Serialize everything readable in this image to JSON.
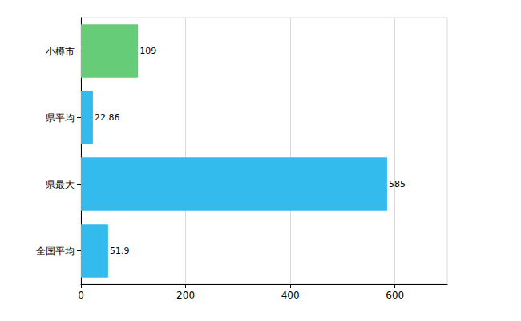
{
  "chart_data": {
    "type": "bar",
    "orientation": "horizontal",
    "categories": [
      "小樽市",
      "県平均",
      "県最大",
      "全国平均"
    ],
    "values": [
      109,
      22.86,
      585,
      51.9
    ],
    "colors": [
      "#66cc77",
      "#33bbee",
      "#33bbee",
      "#33bbee"
    ],
    "xlim": [
      0,
      700
    ],
    "xticks": [
      0,
      200,
      400,
      600
    ],
    "grid": true,
    "data_labels": true
  }
}
